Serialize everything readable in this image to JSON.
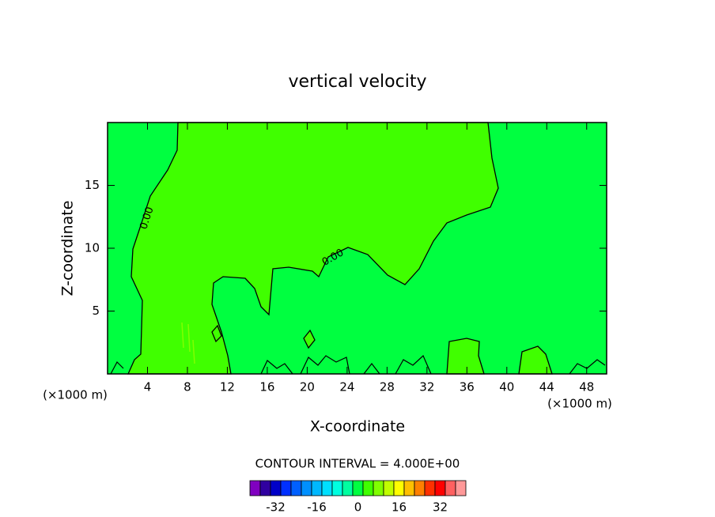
{
  "chart_data": {
    "type": "contour",
    "title": "vertical velocity",
    "x_label": "X-coordinate",
    "y_label": "Z-coordinate",
    "x_unit": "(×1000 m)",
    "y_unit": "(×1000 m)",
    "xlim": [
      0,
      50
    ],
    "ylim": [
      0,
      20
    ],
    "xticks": [
      4,
      8,
      12,
      16,
      20,
      24,
      28,
      32,
      36,
      40,
      44,
      48
    ],
    "yticks": [
      5,
      10,
      15
    ],
    "contour_labels": [
      "0.00",
      "0.00"
    ],
    "contour_interval_text": "CONTOUR INTERVAL = 4.000E+00",
    "colorbar": {
      "levels": [
        -40,
        -36,
        -32,
        -28,
        -24,
        -20,
        -16,
        -12,
        -8,
        -4,
        0,
        4,
        8,
        12,
        16,
        20,
        24,
        28,
        32,
        36,
        40
      ],
      "colors": [
        "#8000c0",
        "#3000a0",
        "#0000c8",
        "#0030ff",
        "#0060ff",
        "#0090ff",
        "#00b8ff",
        "#00e0ff",
        "#00ffe0",
        "#00ffa0",
        "#00ff40",
        "#40ff00",
        "#80ff00",
        "#c0ff00",
        "#ffff00",
        "#ffc000",
        "#ff8000",
        "#ff3000",
        "#ff0000",
        "#ff6060",
        "#ff9999"
      ],
      "lim": [
        -42,
        42
      ],
      "ticks": [
        -32,
        -16,
        0,
        16,
        32
      ]
    }
  }
}
